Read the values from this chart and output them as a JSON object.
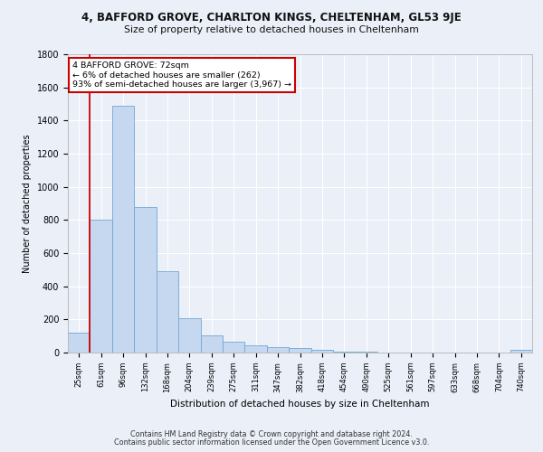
{
  "title1": "4, BAFFORD GROVE, CHARLTON KINGS, CHELTENHAM, GL53 9JE",
  "title2": "Size of property relative to detached houses in Cheltenham",
  "xlabel": "Distribution of detached houses by size in Cheltenham",
  "ylabel": "Number of detached properties",
  "footer1": "Contains HM Land Registry data © Crown copyright and database right 2024.",
  "footer2": "Contains public sector information licensed under the Open Government Licence v3.0.",
  "categories": [
    "25sqm",
    "61sqm",
    "96sqm",
    "132sqm",
    "168sqm",
    "204sqm",
    "239sqm",
    "275sqm",
    "311sqm",
    "347sqm",
    "382sqm",
    "418sqm",
    "454sqm",
    "490sqm",
    "525sqm",
    "561sqm",
    "597sqm",
    "633sqm",
    "668sqm",
    "704sqm",
    "740sqm"
  ],
  "values": [
    120,
    800,
    1490,
    880,
    490,
    205,
    105,
    65,
    45,
    35,
    28,
    15,
    8,
    3,
    2,
    1,
    1,
    0,
    0,
    0,
    15
  ],
  "bar_color": "#c5d8f0",
  "bar_edge_color": "#6fa8d4",
  "annotation_line1": "4 BAFFORD GROVE: 72sqm",
  "annotation_line2": "← 6% of detached houses are smaller (262)",
  "annotation_line3": "93% of semi-detached houses are larger (3,967) →",
  "annotation_box_color": "#ffffff",
  "annotation_box_edge_color": "#cc0000",
  "red_line_x": 1,
  "ylim": [
    0,
    1800
  ],
  "yticks": [
    0,
    200,
    400,
    600,
    800,
    1000,
    1200,
    1400,
    1600,
    1800
  ],
  "bg_color": "#eaeff8",
  "plot_bg_color": "#eaeff8",
  "grid_color": "#ffffff"
}
